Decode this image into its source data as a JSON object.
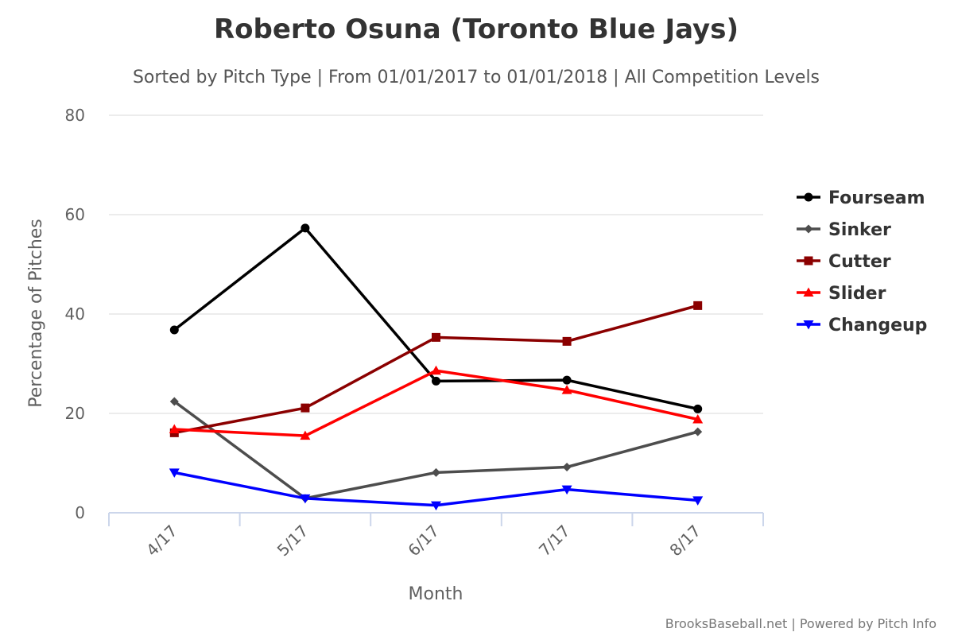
{
  "chart_data": {
    "type": "line",
    "title": "Roberto Osuna (Toronto Blue Jays)",
    "subtitle": "Sorted by Pitch Type | From 01/01/2017 to 01/01/2018 | All Competition Levels",
    "xlabel": "Month",
    "ylabel": "Percentage of Pitches",
    "categories": [
      "4/17",
      "5/17",
      "6/17",
      "7/17",
      "8/17"
    ],
    "y_ticks": [
      "0",
      "20",
      "40",
      "60",
      "80"
    ],
    "ylim": [
      0,
      80
    ],
    "grid": true,
    "legend_position": "right",
    "series": [
      {
        "name": "Fourseam",
        "color": "#000000",
        "marker": "circle",
        "values": [
          36.8,
          57.3,
          26.5,
          26.7,
          20.9
        ]
      },
      {
        "name": "Sinker",
        "color": "#4d4d4d",
        "marker": "diamond",
        "values": [
          22.4,
          2.9,
          8.1,
          9.2,
          16.3
        ]
      },
      {
        "name": "Cutter",
        "color": "#8b0000",
        "marker": "square",
        "values": [
          16.1,
          21.1,
          35.3,
          34.5,
          41.7
        ]
      },
      {
        "name": "Slider",
        "color": "#ff0000",
        "marker": "triangle",
        "values": [
          16.8,
          15.5,
          28.6,
          24.7,
          18.8
        ]
      },
      {
        "name": "Changeup",
        "color": "#0000ff",
        "marker": "triangle-down",
        "values": [
          8.1,
          2.9,
          1.5,
          4.7,
          2.5
        ]
      }
    ],
    "credits": "BrooksBaseball.net | Powered by Pitch Info"
  }
}
